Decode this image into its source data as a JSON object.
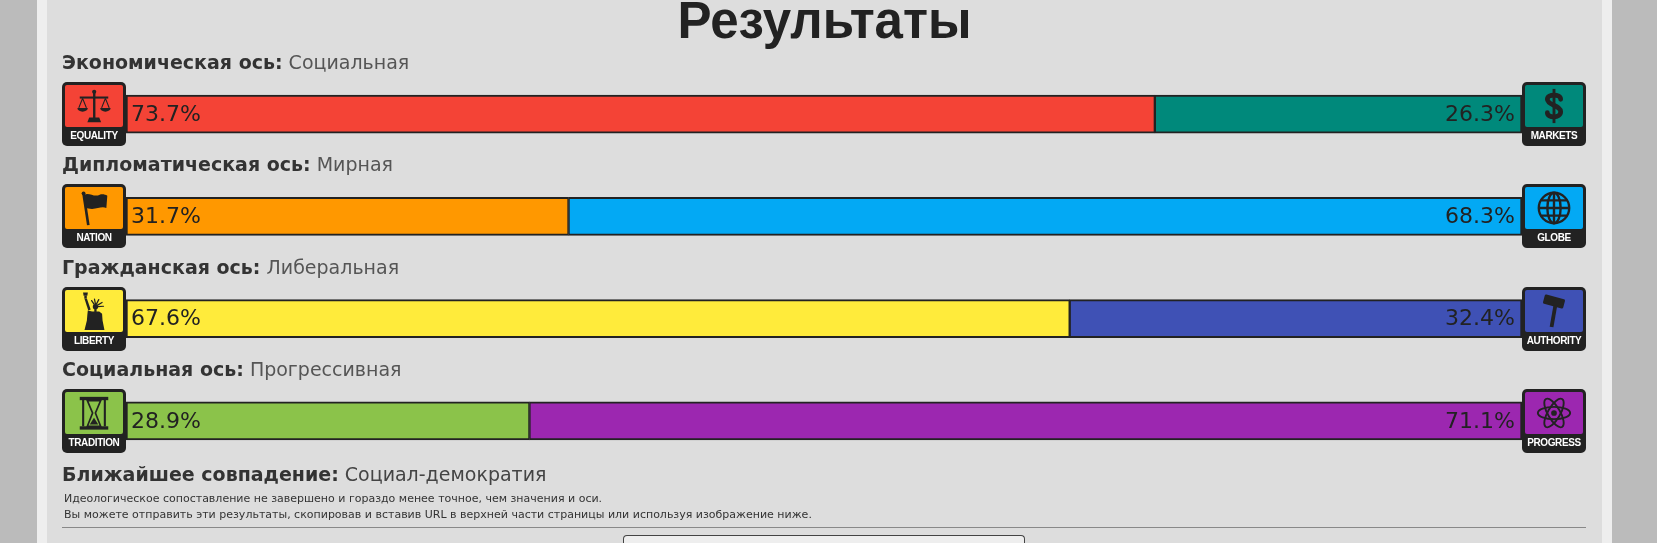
{
  "chart_data": {
    "type": "bar",
    "orientation": "horizontal",
    "stacked": true,
    "title": "Результаты",
    "categories": [
      "Экономическая ось: Социальная",
      "Дипломатическая ось: Мирная",
      "Гражданская ось: Либеральная",
      "Социальная ось: Прогрессивная"
    ],
    "series": [
      {
        "colors": [
          "#f44336",
          "#ff9800",
          "#ffeb3b",
          "#8bc34a"
        ],
        "values": [
          73.7,
          31.7,
          67.6,
          28.9
        ],
        "value_labels": [
          "73.7%",
          "31.7%",
          "67.6%",
          "28.9%"
        ]
      },
      {
        "colors": [
          "#00897b",
          "#03a9f4",
          "#3f51b5",
          "#9c27b0"
        ],
        "values": [
          26.3,
          68.3,
          32.4,
          71.1
        ],
        "value_labels": [
          "26.3%",
          "68.3%",
          "32.4%",
          "71.1%"
        ]
      }
    ],
    "xlim": [
      0,
      100
    ],
    "tick_labels": "y",
    "annotations": [
      "EQUALITY",
      "MARKETS",
      "NATION",
      "GLOBE",
      "LIBERTY",
      "AUTHORITY",
      "TRADITION",
      "PROGRESS",
      "Ближайшее совпадение: Социал-демократия",
      "Идеологическое сопоставление не завершено и гораздо менее точное, чем значения и оси.",
      "Вы можете отправить эти результаты, скопировав и вставив URL в верхней части страницы или используя изображение ниже."
    ]
  }
}
